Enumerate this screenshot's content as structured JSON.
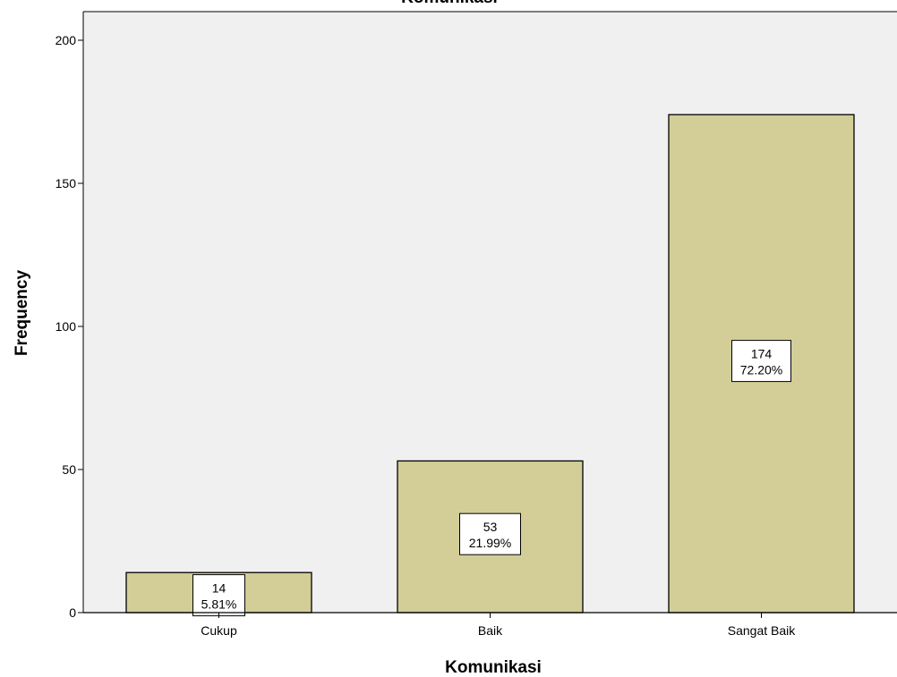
{
  "chart_data": {
    "type": "bar",
    "title": "Komunikasi",
    "xlabel": "Komunikasi",
    "ylabel": "Frequency",
    "categories": [
      "Cukup",
      "Baik",
      "Sangat Baik"
    ],
    "values": [
      14,
      53,
      174
    ],
    "percent_labels": [
      "5.81%",
      "21.99%",
      "72.20%"
    ],
    "ylim": [
      0,
      210
    ],
    "yticks": [
      0,
      50,
      100,
      150,
      200
    ],
    "grid": false,
    "legend": "none",
    "colors": {
      "bar_fill": "#D3CE97",
      "plot_background": "#F0F0F0",
      "axis": "#000000"
    }
  }
}
